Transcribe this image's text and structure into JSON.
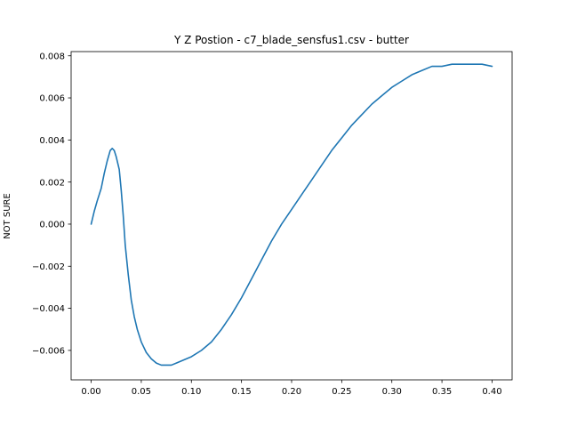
{
  "chart_data": {
    "type": "line",
    "title": "Y Z Postion - c7_blade_sensfus1.csv - butter",
    "xlabel": "",
    "ylabel": "NOT SURE",
    "xlim": [
      -0.02,
      0.42
    ],
    "ylim": [
      -0.0074,
      0.0082
    ],
    "xticks": [
      0.0,
      0.05,
      0.1,
      0.15,
      0.2,
      0.25,
      0.3,
      0.35,
      0.4
    ],
    "xtick_labels": [
      "0.00",
      "0.05",
      "0.10",
      "0.15",
      "0.20",
      "0.25",
      "0.30",
      "0.35",
      "0.40"
    ],
    "yticks": [
      -0.006,
      -0.004,
      -0.002,
      0.0,
      0.002,
      0.004,
      0.006,
      0.008
    ],
    "ytick_labels": [
      "−0.006",
      "−0.004",
      "−0.002",
      "0.000",
      "0.002",
      "0.004",
      "0.006",
      "0.008"
    ],
    "grid": false,
    "line_color": "#1f77b4",
    "series": [
      {
        "x": [
          0.0,
          0.003,
          0.006,
          0.01,
          0.013,
          0.016,
          0.019,
          0.021,
          0.023,
          0.025,
          0.028,
          0.03,
          0.032,
          0.034,
          0.037,
          0.04,
          0.043,
          0.046,
          0.05,
          0.055,
          0.06,
          0.065,
          0.07,
          0.075,
          0.08,
          0.085,
          0.09,
          0.1,
          0.11,
          0.12,
          0.13,
          0.14,
          0.15,
          0.16,
          0.17,
          0.18,
          0.19,
          0.2,
          0.21,
          0.22,
          0.23,
          0.24,
          0.25,
          0.26,
          0.27,
          0.28,
          0.29,
          0.3,
          0.31,
          0.32,
          0.33,
          0.34,
          0.35,
          0.36,
          0.37,
          0.38,
          0.39,
          0.4
        ],
        "y": [
          0.0,
          0.0006,
          0.0011,
          0.0017,
          0.0024,
          0.003,
          0.0035,
          0.0036,
          0.0035,
          0.0032,
          0.0026,
          0.0016,
          0.0004,
          -0.001,
          -0.0024,
          -0.0036,
          -0.0044,
          -0.005,
          -0.0056,
          -0.0061,
          -0.0064,
          -0.0066,
          -0.0067,
          -0.0067,
          -0.0067,
          -0.0066,
          -0.0065,
          -0.0063,
          -0.006,
          -0.0056,
          -0.005,
          -0.0043,
          -0.0035,
          -0.0026,
          -0.0017,
          -0.0008,
          0.0,
          0.0007,
          0.0014,
          0.0021,
          0.0028,
          0.0035,
          0.0041,
          0.0047,
          0.0052,
          0.0057,
          0.0061,
          0.0065,
          0.0068,
          0.0071,
          0.0073,
          0.0075,
          0.0075,
          0.0076,
          0.0076,
          0.0076,
          0.0076,
          0.0075
        ]
      }
    ]
  }
}
